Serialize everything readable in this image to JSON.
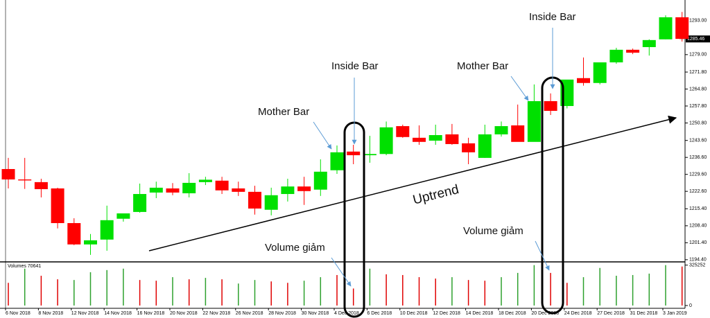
{
  "chart_data": {
    "type": "candlestick",
    "categories": [
      "6 Nov 2018",
      null,
      "8 Nov 2018",
      null,
      "12 Nov 2018",
      null,
      "14 Nov 2018",
      null,
      "16 Nov 2018",
      null,
      "20 Nov 2018",
      null,
      "22 Nov 2018",
      null,
      "26 Nov 2018",
      null,
      "28 Nov 2018",
      null,
      "30 Nov 2018",
      null,
      "4 Dec 2018",
      null,
      "6 Dec 2018",
      null,
      "10 Dec 2018",
      null,
      "12 Dec 2018",
      null,
      "14 Dec 2018",
      null,
      "18 Dec 2018",
      null,
      "20 Dec 2018",
      null,
      "24 Dec 2018",
      null,
      "27 Dec 2018",
      null,
      "31 Dec 2018",
      null,
      "3 Jan 2019",
      null
    ],
    "open": [
      1231.8,
      1227.5,
      1226.4,
      1223.8,
      1209.5,
      1200.7,
      1202.7,
      1211.3,
      1214.1,
      1222.1,
      1223.8,
      1221.8,
      1226.4,
      1227.0,
      1223.8,
      1222.4,
      1215.0,
      1221.5,
      1224.6,
      1223.3,
      1231.3,
      1239.0,
      1237.5,
      1238.0,
      1249.5,
      1244.7,
      1243.5,
      1246.1,
      1242.4,
      1236.4,
      1246.1,
      1249.8,
      1243.0,
      1259.8,
      1257.8,
      1269.3,
      1267.3,
      1275.8,
      1281.0,
      1282.1,
      1285.3,
      1294.4
    ],
    "high": [
      1236.4,
      1236.4,
      1227.8,
      1224.1,
      1211.5,
      1205.0,
      1216.7,
      1213.5,
      1225.8,
      1226.6,
      1226.0,
      1230.1,
      1228.6,
      1228.6,
      1226.6,
      1224.9,
      1224.1,
      1227.8,
      1228.6,
      1235.8,
      1241.5,
      1241.8,
      1245.5,
      1251.4,
      1250.1,
      1249.8,
      1250.1,
      1250.4,
      1244.7,
      1250.1,
      1251.4,
      1258.4,
      1266.7,
      1263.0,
      1267.8,
      1277.8,
      1275.2,
      1281.8,
      1281.5,
      1285.3,
      1295.2,
      1296.6
    ],
    "low": [
      1223.8,
      1223.6,
      1220.1,
      1207.3,
      1200.4,
      1196.4,
      1198.1,
      1210.1,
      1213.8,
      1219.8,
      1221.0,
      1220.1,
      1225.2,
      1221.5,
      1220.7,
      1213.0,
      1212.7,
      1218.4,
      1217.0,
      1220.7,
      1229.8,
      1233.8,
      1234.4,
      1237.5,
      1244.7,
      1241.8,
      1241.8,
      1241.8,
      1233.8,
      1236.4,
      1245.2,
      1243.5,
      1243.5,
      1254.1,
      1256.8,
      1266.2,
      1266.7,
      1275.2,
      1279.2,
      1278.6,
      1285.3,
      1284.4
    ],
    "close": [
      1227.5,
      1227.1,
      1223.5,
      1209.5,
      1200.7,
      1202.4,
      1210.7,
      1213.5,
      1221.5,
      1224.1,
      1222.1,
      1226.1,
      1227.4,
      1223.0,
      1222.4,
      1215.5,
      1221.0,
      1224.6,
      1222.7,
      1230.7,
      1238.7,
      1237.5,
      1238.0,
      1249.0,
      1245.0,
      1243.0,
      1245.8,
      1242.1,
      1238.7,
      1246.1,
      1249.5,
      1243.0,
      1259.8,
      1255.8,
      1268.7,
      1267.3,
      1275.8,
      1281.0,
      1279.8,
      1285.0,
      1294.4,
      1285.5
    ],
    "up_color": "#00e000",
    "down_color": "#ff0000",
    "ylim": [
      1193.5,
      1300.1
    ],
    "yticks": [
      {
        "value": 1293,
        "label": "1293.00"
      },
      {
        "value": 1279,
        "label": "1279.00"
      },
      {
        "value": 1271.8,
        "label": "1271.80"
      },
      {
        "value": 1264.8,
        "label": "1264.80"
      },
      {
        "value": 1257.8,
        "label": "1257.80"
      },
      {
        "value": 1250.8,
        "label": "1250.80"
      },
      {
        "value": 1243.6,
        "label": "1243.60"
      },
      {
        "value": 1236.6,
        "label": "1236.60"
      },
      {
        "value": 1229.6,
        "label": "1229.60"
      },
      {
        "value": 1222.6,
        "label": "1222.60"
      },
      {
        "value": 1215.4,
        "label": "1215.40"
      },
      {
        "value": 1208.4,
        "label": "1208.40"
      },
      {
        "value": 1201.4,
        "label": "1201.40"
      },
      {
        "value": 1194.4,
        "label": "1194.40"
      }
    ],
    "last_price": 1285.46,
    "volume": {
      "label": "Volumes 70641",
      "values": [
        182600,
        296700,
        239700,
        211100,
        205400,
        268200,
        285300,
        296700,
        205400,
        199700,
        228200,
        211100,
        222500,
        211100,
        176900,
        205400,
        194000,
        182600,
        199700,
        228200,
        245400,
        136900,
        296700,
        251100,
        245400,
        228200,
        216800,
        228200,
        205400,
        199700,
        228200,
        262500,
        325200,
        262500,
        182600,
        228200,
        302400,
        239700,
        245400,
        256800,
        325200,
        313800
      ],
      "colors": [
        "#e00000",
        "#2ca02c",
        "#e00000",
        "#e00000",
        "#2ca02c",
        "#2ca02c",
        "#2ca02c",
        "#2ca02c",
        "#e00000",
        "#e00000",
        "#2ca02c",
        "#e00000",
        "#2ca02c",
        "#e00000",
        "#2ca02c",
        "#2ca02c",
        "#e00000",
        "#e00000",
        "#2ca02c",
        "#2ca02c",
        "#e00000",
        "#e00000",
        "#2ca02c",
        "#e00000",
        "#e00000",
        "#e00000",
        "#e00000",
        "#2ca02c",
        "#e00000",
        "#e00000",
        "#2ca02c",
        "#2ca02c",
        "#2ca02c",
        "#e00000",
        "#e00000",
        "#2ca02c",
        "#2ca02c",
        "#2ca02c",
        "#2ca02c",
        "#2ca02c",
        "#2ca02c",
        "#e00000"
      ],
      "ylim": [
        0,
        340000
      ],
      "yticks": [
        0,
        325252
      ]
    },
    "annotations": [
      "Mother Bar",
      "Inside Bar",
      "Mother Bar",
      "Inside Bar",
      "Uptrend",
      "Volume giảm",
      "Volume giảm"
    ]
  }
}
